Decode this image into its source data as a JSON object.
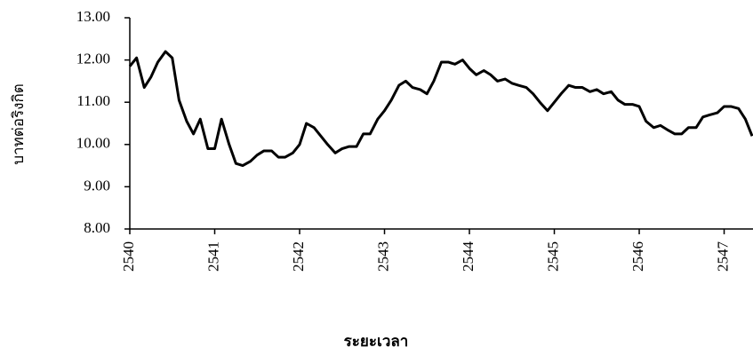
{
  "chart_data": {
    "type": "line",
    "y_label": "บาทต่อริงกิต",
    "x_label": "ระยะเวลา",
    "x": [
      2540,
      2540.08,
      2540.17,
      2540.25,
      2540.33,
      2540.42,
      2540.5,
      2540.58,
      2540.67,
      2540.75,
      2540.83,
      2540.92,
      2541,
      2541.08,
      2541.17,
      2541.25,
      2541.33,
      2541.42,
      2541.5,
      2541.58,
      2541.67,
      2541.75,
      2541.83,
      2541.92,
      2542,
      2542.08,
      2542.17,
      2542.25,
      2542.33,
      2542.42,
      2542.5,
      2542.58,
      2542.67,
      2542.75,
      2542.83,
      2542.92,
      2543,
      2543.08,
      2543.17,
      2543.25,
      2543.33,
      2543.42,
      2543.5,
      2543.58,
      2543.67,
      2543.75,
      2543.83,
      2543.92,
      2544,
      2544.08,
      2544.17,
      2544.25,
      2544.33,
      2544.42,
      2544.5,
      2544.58,
      2544.67,
      2544.75,
      2544.83,
      2544.92,
      2545,
      2545.08,
      2545.17,
      2545.25,
      2545.33,
      2545.42,
      2545.5,
      2545.58,
      2545.67,
      2545.75,
      2545.83,
      2545.92,
      2546,
      2546.08,
      2546.17,
      2546.25,
      2546.33,
      2546.42,
      2546.5,
      2546.58,
      2546.67,
      2546.75,
      2546.83,
      2546.92,
      2547,
      2547.08,
      2547.17,
      2547.25,
      2547.33
    ],
    "series": [
      {
        "color": "#000000",
        "values": [
          11.85,
          12.05,
          11.35,
          11.6,
          11.95,
          12.2,
          12.05,
          11.05,
          10.55,
          10.25,
          10.6,
          9.9,
          9.9,
          10.6,
          10.0,
          9.55,
          9.5,
          9.6,
          9.75,
          9.85,
          9.85,
          9.7,
          9.7,
          9.8,
          10.0,
          10.5,
          10.4,
          10.2,
          10.0,
          9.8,
          9.9,
          9.95,
          9.95,
          10.25,
          10.25,
          10.6,
          10.8,
          11.05,
          11.4,
          11.5,
          11.35,
          11.3,
          11.2,
          11.5,
          11.95,
          11.95,
          11.9,
          12.0,
          11.8,
          11.65,
          11.75,
          11.65,
          11.5,
          11.55,
          11.45,
          11.4,
          11.35,
          11.2,
          11.0,
          10.8,
          11.0,
          11.2,
          11.4,
          11.35,
          11.35,
          11.25,
          11.3,
          11.2,
          11.25,
          11.05,
          10.95,
          10.95,
          10.9,
          10.55,
          10.4,
          10.45,
          10.35,
          10.25,
          10.25,
          10.4,
          10.4,
          10.65,
          10.7,
          10.75,
          10.9,
          10.9,
          10.85,
          10.6,
          10.2
        ]
      }
    ],
    "xlim": [
      2540,
      2547.34
    ],
    "xticks": [
      2540,
      2541,
      2542,
      2543,
      2544,
      2545,
      2546,
      2547
    ],
    "ylim": [
      8,
      13
    ],
    "yticks": [
      {
        "value": 8,
        "label": "8.00"
      },
      {
        "value": 9,
        "label": "9.00"
      },
      {
        "value": 10,
        "label": "10.00"
      },
      {
        "value": 11,
        "label": "11.00"
      },
      {
        "value": 12,
        "label": "12.00"
      },
      {
        "value": 13,
        "label": "13.00"
      }
    ]
  }
}
